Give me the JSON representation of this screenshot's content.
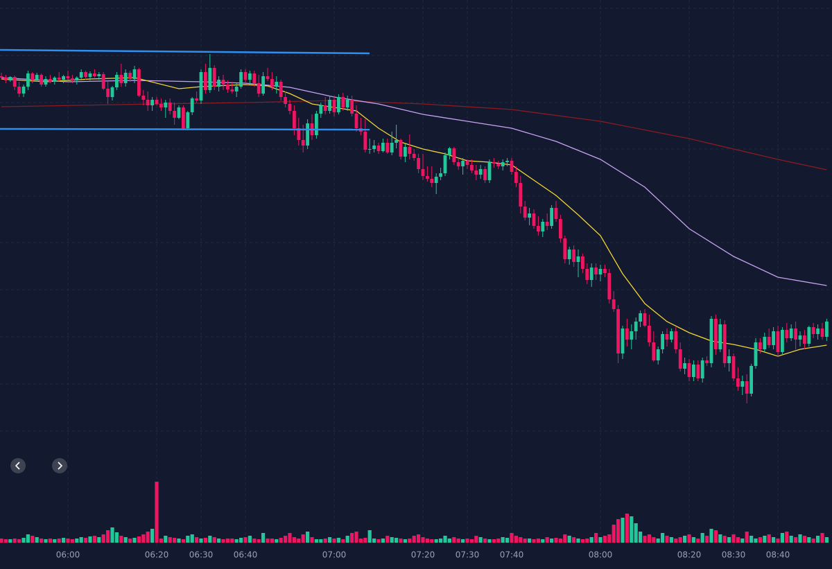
{
  "chart_data": {
    "type": "candlestick",
    "up_color": "#22c79a",
    "down_color": "#ee1660",
    "xlim": [
      344.6875,
      532.1875
    ],
    "ylim": [
      10,
      700
    ],
    "volume_ylim": [
      0,
      100
    ],
    "grid": true,
    "xticks": [
      {
        "value": 360,
        "label": "06:00"
      },
      {
        "value": 380,
        "label": "06:20"
      },
      {
        "value": 390,
        "label": "06:30"
      },
      {
        "value": 400,
        "label": "06:40"
      },
      {
        "value": 420,
        "label": "07:00"
      },
      {
        "value": 440,
        "label": "07:20"
      },
      {
        "value": 450,
        "label": "07:30"
      },
      {
        "value": 460,
        "label": "07:40"
      },
      {
        "value": 480,
        "label": "08:00"
      },
      {
        "value": 500,
        "label": "08:20"
      },
      {
        "value": 510,
        "label": "08:30"
      },
      {
        "value": 520,
        "label": "08:40"
      }
    ],
    "x": [
      345,
      346,
      347,
      348,
      349,
      350,
      351,
      352,
      353,
      354,
      355,
      356,
      357,
      358,
      359,
      360,
      361,
      362,
      363,
      364,
      365,
      366,
      367,
      368,
      369,
      370,
      371,
      372,
      373,
      374,
      375,
      376,
      377,
      378,
      379,
      380,
      381,
      382,
      383,
      384,
      385,
      386,
      387,
      388,
      389,
      390,
      391,
      392,
      393,
      394,
      395,
      396,
      397,
      398,
      399,
      400,
      401,
      402,
      403,
      404,
      405,
      406,
      407,
      408,
      409,
      410,
      411,
      412,
      413,
      414,
      415,
      416,
      417,
      418,
      419,
      420,
      421,
      422,
      423,
      424,
      425,
      426,
      427,
      428,
      429,
      430,
      431,
      432,
      433,
      434,
      435,
      436,
      437,
      438,
      439,
      440,
      441,
      442,
      443,
      444,
      445,
      446,
      447,
      448,
      449,
      450,
      451,
      452,
      453,
      454,
      455,
      456,
      457,
      458,
      459,
      460,
      461,
      462,
      463,
      464,
      465,
      466,
      467,
      468,
      469,
      470,
      471,
      472,
      473,
      474,
      475,
      476,
      477,
      478,
      479,
      480,
      481,
      482,
      483,
      484,
      485,
      486,
      487,
      488,
      489,
      490,
      491,
      492,
      493,
      494,
      495,
      496,
      497,
      498,
      499,
      500,
      501,
      502,
      503,
      504,
      505,
      506,
      507,
      508,
      509,
      510,
      511,
      512,
      513,
      514,
      515,
      516,
      517,
      518,
      519,
      520,
      521,
      522,
      523,
      524,
      525,
      526,
      527,
      528,
      529,
      530,
      531
    ],
    "ohlc": [
      [
        590,
        595,
        585,
        588
      ],
      [
        588,
        592,
        580,
        584
      ],
      [
        584,
        590,
        582,
        589
      ],
      [
        589,
        591,
        570,
        575
      ],
      [
        575,
        582,
        560,
        565
      ],
      [
        565,
        578,
        560,
        575
      ],
      [
        575,
        598,
        570,
        594
      ],
      [
        594,
        596,
        580,
        584
      ],
      [
        584,
        595,
        582,
        592
      ],
      [
        592,
        594,
        575,
        578
      ],
      [
        578,
        590,
        575,
        586
      ],
      [
        586,
        592,
        580,
        582
      ],
      [
        582,
        590,
        578,
        588
      ],
      [
        588,
        596,
        583,
        585
      ],
      [
        585,
        592,
        580,
        590
      ],
      [
        590,
        598,
        585,
        587
      ],
      [
        587,
        592,
        580,
        584
      ],
      [
        584,
        590,
        578,
        588
      ],
      [
        588,
        600,
        584,
        596
      ],
      [
        596,
        598,
        585,
        589
      ],
      [
        589,
        597,
        584,
        594
      ],
      [
        594,
        600,
        588,
        590
      ],
      [
        590,
        596,
        585,
        593
      ],
      [
        593,
        596,
        570,
        572
      ],
      [
        572,
        582,
        550,
        560
      ],
      [
        560,
        576,
        555,
        574
      ],
      [
        574,
        596,
        570,
        592
      ],
      [
        592,
        608,
        575,
        580
      ],
      [
        580,
        600,
        575,
        595
      ],
      [
        595,
        598,
        582,
        586
      ],
      [
        586,
        605,
        580,
        600
      ],
      [
        600,
        602,
        560,
        562
      ],
      [
        562,
        570,
        548,
        556
      ],
      [
        556,
        568,
        540,
        548
      ],
      [
        548,
        560,
        540,
        556
      ],
      [
        556,
        560,
        548,
        550
      ],
      [
        550,
        558,
        540,
        545
      ],
      [
        545,
        556,
        530,
        552
      ],
      [
        552,
        558,
        535,
        540
      ],
      [
        540,
        552,
        520,
        530
      ],
      [
        530,
        548,
        528,
        545
      ],
      [
        545,
        548,
        512,
        515
      ],
      [
        515,
        540,
        512,
        538
      ],
      [
        538,
        560,
        534,
        558
      ],
      [
        558,
        568,
        552,
        555
      ],
      [
        555,
        600,
        550,
        596
      ],
      [
        596,
        608,
        565,
        570
      ],
      [
        570,
        622,
        566,
        602
      ],
      [
        602,
        606,
        570,
        575
      ],
      [
        575,
        590,
        568,
        585
      ],
      [
        585,
        592,
        570,
        578
      ],
      [
        578,
        584,
        566,
        571
      ],
      [
        571,
        582,
        565,
        568
      ],
      [
        568,
        580,
        560,
        575
      ],
      [
        575,
        600,
        572,
        596
      ],
      [
        596,
        600,
        580,
        585
      ],
      [
        585,
        598,
        578,
        594
      ],
      [
        594,
        598,
        575,
        580
      ],
      [
        580,
        592,
        560,
        565
      ],
      [
        565,
        596,
        562,
        590
      ],
      [
        590,
        602,
        583,
        586
      ],
      [
        586,
        596,
        570,
        575
      ],
      [
        575,
        590,
        565,
        582
      ],
      [
        582,
        585,
        555,
        560
      ],
      [
        560,
        568,
        545,
        550
      ],
      [
        550,
        556,
        535,
        540
      ],
      [
        540,
        548,
        505,
        515
      ],
      [
        515,
        530,
        490,
        498
      ],
      [
        498,
        520,
        480,
        490
      ],
      [
        490,
        528,
        485,
        522
      ],
      [
        522,
        535,
        498,
        505
      ],
      [
        505,
        540,
        500,
        536
      ],
      [
        536,
        552,
        530,
        548
      ],
      [
        548,
        560,
        535,
        540
      ],
      [
        540,
        562,
        536,
        556
      ],
      [
        556,
        562,
        532,
        538
      ],
      [
        538,
        564,
        535,
        560
      ],
      [
        560,
        566,
        540,
        545
      ],
      [
        545,
        562,
        540,
        556
      ],
      [
        556,
        562,
        532,
        536
      ],
      [
        536,
        548,
        510,
        515
      ],
      [
        515,
        530,
        505,
        510
      ],
      [
        510,
        528,
        480,
        484
      ],
      [
        484,
        500,
        478,
        485
      ],
      [
        485,
        498,
        480,
        490
      ],
      [
        490,
        494,
        478,
        482
      ],
      [
        482,
        500,
        480,
        494
      ],
      [
        494,
        500,
        478,
        480
      ],
      [
        480,
        510,
        476,
        494
      ],
      [
        494,
        520,
        486,
        498
      ],
      [
        498,
        500,
        470,
        474
      ],
      [
        474,
        492,
        466,
        488
      ],
      [
        488,
        506,
        470,
        478
      ],
      [
        478,
        485,
        468,
        472
      ],
      [
        472,
        478,
        450,
        456
      ],
      [
        456,
        478,
        440,
        446
      ],
      [
        446,
        460,
        438,
        442
      ],
      [
        442,
        460,
        430,
        436
      ],
      [
        436,
        450,
        420,
        445
      ],
      [
        445,
        458,
        440,
        450
      ],
      [
        450,
        480,
        446,
        476
      ],
      [
        476,
        488,
        470,
        486
      ],
      [
        486,
        488,
        462,
        466
      ],
      [
        466,
        472,
        455,
        460
      ],
      [
        460,
        472,
        448,
        468
      ],
      [
        468,
        470,
        456,
        462
      ],
      [
        462,
        470,
        450,
        454
      ],
      [
        454,
        462,
        440,
        448
      ],
      [
        448,
        462,
        442,
        456
      ],
      [
        456,
        460,
        436,
        440
      ],
      [
        440,
        470,
        436,
        466
      ],
      [
        466,
        472,
        458,
        464
      ],
      [
        464,
        468,
        456,
        460
      ],
      [
        460,
        470,
        454,
        466
      ],
      [
        466,
        472,
        460,
        468
      ],
      [
        468,
        472,
        448,
        452
      ],
      [
        452,
        460,
        430,
        436
      ],
      [
        436,
        446,
        392,
        402
      ],
      [
        402,
        410,
        382,
        386
      ],
      [
        386,
        400,
        375,
        392
      ],
      [
        392,
        398,
        370,
        374
      ],
      [
        374,
        388,
        360,
        366
      ],
      [
        366,
        384,
        358,
        380
      ],
      [
        380,
        392,
        368,
        374
      ],
      [
        374,
        404,
        370,
        400
      ],
      [
        400,
        410,
        380,
        384
      ],
      [
        384,
        390,
        350,
        356
      ],
      [
        356,
        360,
        320,
        326
      ],
      [
        326,
        344,
        318,
        340
      ],
      [
        340,
        346,
        315,
        322
      ],
      [
        322,
        340,
        300,
        330
      ],
      [
        330,
        334,
        306,
        312
      ],
      [
        312,
        320,
        290,
        296
      ],
      [
        296,
        320,
        286,
        314
      ],
      [
        314,
        320,
        296,
        304
      ],
      [
        304,
        318,
        294,
        312
      ],
      [
        312,
        318,
        300,
        306
      ],
      [
        306,
        312,
        262,
        268
      ],
      [
        268,
        280,
        250,
        254
      ],
      [
        254,
        260,
        176,
        190
      ],
      [
        190,
        230,
        182,
        226
      ],
      [
        226,
        240,
        200,
        210
      ],
      [
        210,
        232,
        196,
        222
      ],
      [
        222,
        242,
        210,
        236
      ],
      [
        236,
        252,
        228,
        248
      ],
      [
        248,
        254,
        228,
        230
      ],
      [
        230,
        246,
        200,
        206
      ],
      [
        206,
        222,
        178,
        180
      ],
      [
        180,
        200,
        174,
        196
      ],
      [
        196,
        222,
        190,
        218
      ],
      [
        218,
        226,
        200,
        210
      ],
      [
        210,
        226,
        206,
        222
      ],
      [
        222,
        228,
        190,
        196
      ],
      [
        196,
        206,
        164,
        168
      ],
      [
        168,
        184,
        160,
        176
      ],
      [
        176,
        182,
        150,
        156
      ],
      [
        156,
        180,
        150,
        174
      ],
      [
        174,
        180,
        150,
        154
      ],
      [
        154,
        184,
        148,
        180
      ],
      [
        180,
        186,
        172,
        176
      ],
      [
        176,
        244,
        170,
        240
      ],
      [
        240,
        246,
        188,
        196
      ],
      [
        196,
        240,
        192,
        232
      ],
      [
        232,
        238,
        170,
        176
      ],
      [
        176,
        196,
        164,
        186
      ],
      [
        186,
        190,
        150,
        154
      ],
      [
        154,
        170,
        136,
        142
      ],
      [
        142,
        158,
        130,
        150
      ],
      [
        150,
        160,
        118,
        132
      ],
      [
        132,
        175,
        128,
        172
      ],
      [
        172,
        212,
        168,
        206
      ],
      [
        206,
        212,
        190,
        196
      ],
      [
        196,
        220,
        192,
        214
      ],
      [
        214,
        226,
        198,
        202
      ],
      [
        202,
        228,
        196,
        222
      ],
      [
        222,
        230,
        186,
        192
      ],
      [
        192,
        228,
        188,
        224
      ],
      [
        224,
        234,
        206,
        212
      ],
      [
        212,
        232,
        208,
        226
      ],
      [
        226,
        236,
        196,
        210
      ],
      [
        210,
        222,
        200,
        216
      ],
      [
        216,
        224,
        196,
        204
      ],
      [
        204,
        230,
        200,
        228
      ],
      [
        228,
        234,
        212,
        218
      ],
      [
        218,
        232,
        210,
        226
      ],
      [
        226,
        234,
        210,
        214
      ],
      [
        214,
        240,
        208,
        236
      ]
    ],
    "volume": [
      6,
      5,
      5,
      6,
      5,
      7,
      12,
      10,
      8,
      6,
      5,
      6,
      5,
      6,
      7,
      6,
      5,
      6,
      8,
      7,
      9,
      10,
      8,
      12,
      18,
      22,
      15,
      10,
      8,
      6,
      7,
      9,
      12,
      16,
      20,
      88,
      6,
      10,
      8,
      7,
      6,
      5,
      10,
      12,
      8,
      6,
      7,
      10,
      8,
      6,
      5,
      6,
      6,
      5,
      7,
      8,
      10,
      6,
      5,
      14,
      6,
      6,
      5,
      7,
      10,
      14,
      8,
      6,
      12,
      16,
      8,
      5,
      5,
      6,
      8,
      6,
      7,
      5,
      10,
      14,
      16,
      6,
      7,
      18,
      6,
      5,
      6,
      10,
      8,
      7,
      6,
      5,
      6,
      10,
      12,
      8,
      6,
      5,
      5,
      6,
      10,
      6,
      8,
      6,
      5,
      6,
      5,
      10,
      8,
      6,
      5,
      5,
      6,
      8,
      7,
      14,
      10,
      8,
      6,
      6,
      5,
      6,
      5,
      8,
      6,
      7,
      6,
      12,
      10,
      8,
      6,
      5,
      6,
      8,
      14,
      8,
      10,
      12,
      26,
      34,
      36,
      42,
      38,
      28,
      16,
      10,
      12,
      8,
      6,
      14,
      10,
      8,
      6,
      8,
      10,
      12,
      8,
      6,
      14,
      10,
      20,
      18,
      12,
      10,
      8,
      12,
      8,
      6,
      16,
      10,
      6,
      8,
      10,
      12,
      8,
      6,
      14,
      16,
      10,
      8,
      12,
      10,
      8,
      6,
      10,
      14,
      8
    ],
    "lines": [
      {
        "color": "#8b1a22",
        "x": [
          345,
          380,
          400,
          420,
          440,
          460,
          480,
          500,
          520,
          531
        ],
        "values": [
          546,
          550,
          552,
          555,
          550,
          542,
          525,
          500,
          470,
          455
        ]
      },
      {
        "color": "#c9a3f2",
        "x": [
          345,
          360,
          375,
          390,
          400,
          410,
          420,
          430,
          440,
          450,
          460,
          470,
          480,
          490,
          500,
          510,
          520,
          531
        ],
        "values": [
          588,
          582,
          584,
          582,
          580,
          574,
          560,
          550,
          535,
          525,
          515,
          496,
          470,
          430,
          370,
          330,
          300,
          288
        ]
      },
      {
        "color": "#f2d535",
        "x": [
          345,
          355,
          365,
          375,
          385,
          390,
          400,
          405,
          410,
          415,
          420,
          425,
          430,
          435,
          440,
          445,
          450,
          455,
          460,
          465,
          470,
          475,
          480,
          485,
          490,
          495,
          500,
          505,
          510,
          515,
          520,
          525,
          531
        ],
        "values": [
          586,
          582,
          586,
          588,
          572,
          575,
          578,
          576,
          565,
          550,
          545,
          540,
          515,
          495,
          485,
          478,
          468,
          466,
          462,
          440,
          418,
          390,
          360,
          305,
          262,
          236,
          220,
          208,
          203,
          196,
          186,
          196,
          202
        ]
      }
    ]
  }
}
